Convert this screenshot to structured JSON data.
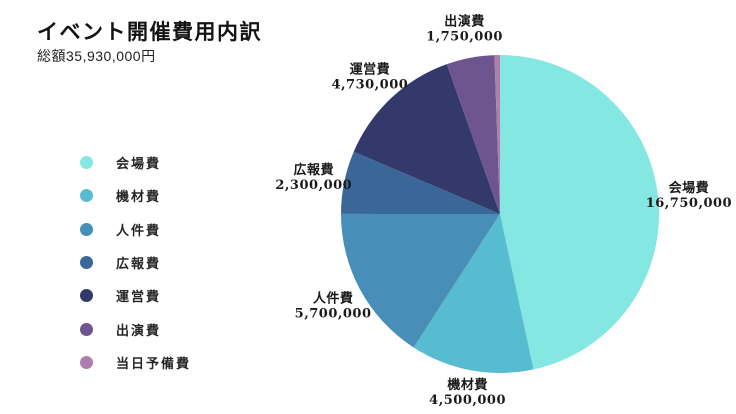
{
  "page": {
    "background": "#ffffff",
    "text_color": "#1a1a1a"
  },
  "chart_data": {
    "type": "pie",
    "title": "イベント開催費用内訳",
    "subtitle": "総額35,930,000円",
    "total": 35930000,
    "unit": "円",
    "legend_position": "left",
    "start_angle_deg": 0,
    "direction": "clockwise",
    "slices": [
      {
        "label": "会場費",
        "value": 16750000,
        "display_value": "16,750,000",
        "color": "#84E7E2",
        "data_label_shown": true
      },
      {
        "label": "機材費",
        "value": 4500000,
        "display_value": "4,500,000",
        "color": "#58BCD1",
        "data_label_shown": true
      },
      {
        "label": "人件費",
        "value": 5700000,
        "display_value": "5,700,000",
        "color": "#478FB8",
        "data_label_shown": true
      },
      {
        "label": "広報費",
        "value": 2300000,
        "display_value": "2,300,000",
        "color": "#3A6797",
        "data_label_shown": true
      },
      {
        "label": "運営費",
        "value": 4730000,
        "display_value": "4,730,000",
        "color": "#333A6B",
        "data_label_shown": true
      },
      {
        "label": "出演費",
        "value": 1750000,
        "display_value": "1,750,000",
        "color": "#6F5590",
        "data_label_shown": true
      },
      {
        "label": "当日予備費",
        "value": 200000,
        "display_value": "200,000",
        "color": "#AE7FAC",
        "data_label_shown": false
      }
    ]
  }
}
